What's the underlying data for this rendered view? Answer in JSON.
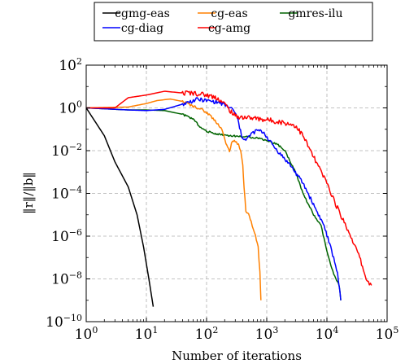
{
  "chart_data": {
    "type": "line",
    "xlabel": "Number of iterations",
    "ylabel": "‖r‖/‖b‖",
    "x_scale": "log",
    "y_scale": "log",
    "xlim": [
      1,
      100000
    ],
    "ylim": [
      1e-10,
      100
    ],
    "x_ticks": [
      {
        "base": "10",
        "exp": "0"
      },
      {
        "base": "10",
        "exp": "1"
      },
      {
        "base": "10",
        "exp": "2"
      },
      {
        "base": "10",
        "exp": "3"
      },
      {
        "base": "10",
        "exp": "4"
      },
      {
        "base": "10",
        "exp": "5"
      }
    ],
    "y_ticks": [
      {
        "base": "10",
        "exp": "2"
      },
      {
        "base": "10",
        "exp": "0"
      },
      {
        "base": "10",
        "exp": "−2"
      },
      {
        "base": "10",
        "exp": "−4"
      },
      {
        "base": "10",
        "exp": "−6"
      },
      {
        "base": "10",
        "exp": "−8"
      },
      {
        "base": "10",
        "exp": "−10"
      }
    ],
    "grid": true,
    "legend_position": "top-center, above plot",
    "series": [
      {
        "name": "cgmg-eas",
        "color": "#000000",
        "points": [
          [
            1,
            1.0
          ],
          [
            2,
            0.05
          ],
          [
            3,
            0.003
          ],
          [
            5,
            0.0002
          ],
          [
            7,
            1e-05
          ],
          [
            9,
            3e-07
          ],
          [
            11,
            1e-08
          ],
          [
            13,
            5e-10
          ]
        ]
      },
      {
        "name": "cg-diag",
        "color": "#0000ff",
        "points": [
          [
            1,
            1.0
          ],
          [
            5,
            0.8
          ],
          [
            10,
            0.75
          ],
          [
            20,
            0.85
          ],
          [
            40,
            1.5
          ],
          [
            70,
            2.5
          ],
          [
            100,
            2.2
          ],
          [
            160,
            1.8
          ],
          [
            220,
            1.2
          ],
          [
            280,
            0.8
          ],
          [
            330,
            0.3
          ],
          [
            380,
            0.05
          ],
          [
            450,
            0.03
          ],
          [
            550,
            0.06
          ],
          [
            700,
            0.09
          ],
          [
            900,
            0.07
          ],
          [
            1100,
            0.03
          ],
          [
            1500,
            0.01
          ],
          [
            2500,
            0.002
          ],
          [
            4000,
            0.0003
          ],
          [
            6000,
            3e-05
          ],
          [
            9000,
            3e-06
          ],
          [
            12000,
            2e-07
          ],
          [
            15000,
            2e-08
          ],
          [
            17000,
            1e-09
          ]
        ]
      },
      {
        "name": "cg-amg",
        "color": "#ff0000",
        "points": [
          [
            1,
            1.0
          ],
          [
            3,
            1.0
          ],
          [
            5,
            3.0
          ],
          [
            10,
            4.0
          ],
          [
            20,
            6.0
          ],
          [
            40,
            5.0
          ],
          [
            60,
            5.0
          ],
          [
            100,
            4.0
          ],
          [
            150,
            3.0
          ],
          [
            200,
            1.5
          ],
          [
            300,
            0.4
          ],
          [
            500,
            0.35
          ],
          [
            800,
            0.3
          ],
          [
            1300,
            0.25
          ],
          [
            2000,
            0.2
          ],
          [
            3000,
            0.15
          ],
          [
            4000,
            0.05
          ],
          [
            6000,
            0.005
          ],
          [
            10000,
            0.0003
          ],
          [
            15000,
            2e-05
          ],
          [
            25000,
            1e-06
          ],
          [
            35000,
            1e-07
          ],
          [
            45000,
            1e-08
          ],
          [
            55000,
            5e-09
          ]
        ]
      },
      {
        "name": "cg-eas",
        "color": "#ff8000",
        "points": [
          [
            1,
            1.0
          ],
          [
            5,
            1.1
          ],
          [
            10,
            1.6
          ],
          [
            15,
            2.2
          ],
          [
            25,
            2.6
          ],
          [
            40,
            2.0
          ],
          [
            60,
            1.2
          ],
          [
            80,
            0.9
          ],
          [
            110,
            0.5
          ],
          [
            150,
            0.2
          ],
          [
            180,
            0.1
          ],
          [
            210,
            0.02
          ],
          [
            240,
            0.01
          ],
          [
            270,
            0.03
          ],
          [
            300,
            0.025
          ],
          [
            340,
            0.02
          ],
          [
            370,
            0.01
          ],
          [
            400,
            0.002
          ],
          [
            420,
            0.0002
          ],
          [
            450,
            1.5e-05
          ],
          [
            500,
            1e-05
          ],
          [
            550,
            5e-06
          ],
          [
            600,
            2e-06
          ],
          [
            650,
            1e-06
          ],
          [
            720,
            3e-07
          ],
          [
            770,
            2e-08
          ],
          [
            800,
            1e-09
          ]
        ]
      },
      {
        "name": "gmres-ilu",
        "color": "#006400",
        "points": [
          [
            1,
            1.0
          ],
          [
            5,
            0.8
          ],
          [
            10,
            0.8
          ],
          [
            20,
            0.75
          ],
          [
            40,
            0.5
          ],
          [
            60,
            0.3
          ],
          [
            80,
            0.12
          ],
          [
            100,
            0.08
          ],
          [
            150,
            0.06
          ],
          [
            250,
            0.05
          ],
          [
            400,
            0.045
          ],
          [
            700,
            0.04
          ],
          [
            1000,
            0.03
          ],
          [
            1500,
            0.02
          ],
          [
            2000,
            0.01
          ],
          [
            3000,
            0.001
          ],
          [
            4000,
            0.0001
          ],
          [
            6000,
            1e-05
          ],
          [
            8000,
            3e-06
          ],
          [
            10000,
            2e-07
          ],
          [
            12000,
            3e-08
          ],
          [
            14000,
            1e-08
          ],
          [
            16000,
            5e-09
          ],
          [
            17000,
            1e-09
          ]
        ]
      }
    ]
  }
}
